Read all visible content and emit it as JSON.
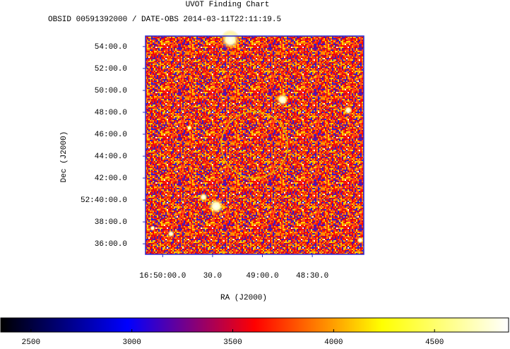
{
  "chart_data": {
    "type": "image",
    "title": "UVOT Finding Chart",
    "subtitle": "OBSID 00591392000 / DATE-OBS 2014-03-11T22:11:19.5",
    "xlabel": "RA (J2000)",
    "ylabel": "Dec (J2000)",
    "xlim": [
      252.543,
      251.996
    ],
    "ylim": [
      52.584,
      52.916
    ],
    "xticks": [
      {
        "value": 252.5,
        "label": "16:50:00.0"
      },
      {
        "value": 252.375,
        "label": "30.0"
      },
      {
        "value": 252.25,
        "label": "49:00.0"
      },
      {
        "value": 252.125,
        "label": "48:30.0"
      }
    ],
    "yticks": [
      {
        "value": 52.9,
        "label": "54:00.0"
      },
      {
        "value": 52.8667,
        "label": "52:00.0"
      },
      {
        "value": 52.8333,
        "label": "50:00.0"
      },
      {
        "value": 52.8,
        "label": "48:00.0"
      },
      {
        "value": 52.7667,
        "label": "46:00.0"
      },
      {
        "value": 52.7333,
        "label": "44:00.0"
      },
      {
        "value": 52.7,
        "label": "42:00.0"
      },
      {
        "value": 52.6667,
        "label": "52:40:00.0"
      },
      {
        "value": 52.6333,
        "label": "38:00.0"
      },
      {
        "value": 52.6,
        "label": "36:00.0"
      }
    ],
    "region": {
      "ra": 252.27,
      "dec": 52.7505,
      "radius": 0.0505,
      "color": "#e8b400"
    },
    "frame_color": "#2a2ad0",
    "colorbar": {
      "lim": [
        2350,
        4867
      ],
      "ticks": [
        2500,
        3000,
        3500,
        4000,
        4500
      ],
      "colormap": [
        "#000000",
        "#0000ff",
        "#ff0000",
        "#ffff00",
        "#ffffff"
      ]
    }
  }
}
